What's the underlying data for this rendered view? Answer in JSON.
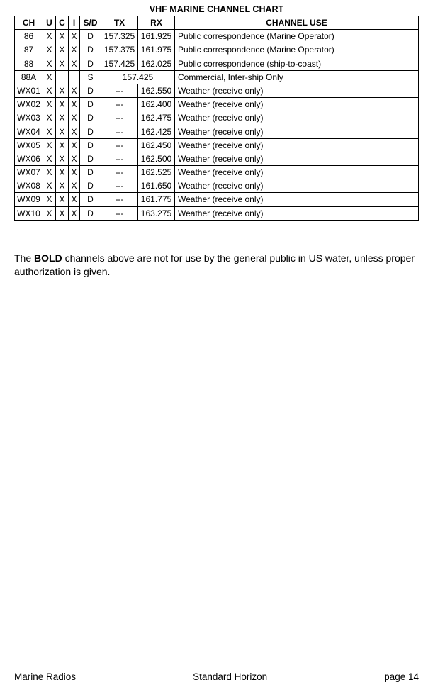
{
  "title": "VHF MARINE CHANNEL CHART",
  "columns": [
    "CH",
    "U",
    "C",
    "I",
    "S/D",
    "TX",
    "RX",
    "CHANNEL USE"
  ],
  "rows": [
    {
      "ch": "86",
      "u": "X",
      "c": "X",
      "i": "X",
      "sd": "D",
      "tx": "157.325",
      "rx": "161.925",
      "use": "Public correspondence (Marine Operator)",
      "merge": false
    },
    {
      "ch": "87",
      "u": "X",
      "c": "X",
      "i": "X",
      "sd": "D",
      "tx": "157.375",
      "rx": "161.975",
      "use": "Public correspondence (Marine Operator)",
      "merge": false
    },
    {
      "ch": "88",
      "u": "X",
      "c": "X",
      "i": "X",
      "sd": "D",
      "tx": "157.425",
      "rx": "162.025",
      "use": "Public correspondence (ship-to-coast)",
      "merge": false
    },
    {
      "ch": "88A",
      "u": "X",
      "c": "",
      "i": "",
      "sd": "S",
      "txrx": "157.425",
      "use": "Commercial, Inter-ship Only",
      "merge": true
    },
    {
      "ch": "WX01",
      "u": "X",
      "c": "X",
      "i": "X",
      "sd": "D",
      "tx": "---",
      "rx": "162.550",
      "use": "Weather (receive only)",
      "merge": false
    },
    {
      "ch": "WX02",
      "u": "X",
      "c": "X",
      "i": "X",
      "sd": "D",
      "tx": "---",
      "rx": "162.400",
      "use": "Weather (receive only)",
      "merge": false
    },
    {
      "ch": "WX03",
      "u": "X",
      "c": "X",
      "i": "X",
      "sd": "D",
      "tx": "---",
      "rx": "162.475",
      "use": "Weather (receive only)",
      "merge": false
    },
    {
      "ch": "WX04",
      "u": "X",
      "c": "X",
      "i": "X",
      "sd": "D",
      "tx": "---",
      "rx": "162.425",
      "use": "Weather (receive only)",
      "merge": false
    },
    {
      "ch": "WX05",
      "u": "X",
      "c": "X",
      "i": "X",
      "sd": "D",
      "tx": "---",
      "rx": "162.450",
      "use": "Weather (receive only)",
      "merge": false
    },
    {
      "ch": "WX06",
      "u": "X",
      "c": "X",
      "i": "X",
      "sd": "D",
      "tx": "---",
      "rx": "162.500",
      "use": "Weather (receive only)",
      "merge": false
    },
    {
      "ch": "WX07",
      "u": "X",
      "c": "X",
      "i": "X",
      "sd": "D",
      "tx": "---",
      "rx": "162.525",
      "use": "Weather (receive only)",
      "merge": false
    },
    {
      "ch": "WX08",
      "u": "X",
      "c": "X",
      "i": "X",
      "sd": "D",
      "tx": "---",
      "rx": "161.650",
      "use": "Weather (receive only)",
      "merge": false
    },
    {
      "ch": "WX09",
      "u": "X",
      "c": "X",
      "i": "X",
      "sd": "D",
      "tx": "---",
      "rx": "161.775",
      "use": "Weather (receive only)",
      "merge": false
    },
    {
      "ch": "WX10",
      "u": "X",
      "c": "X",
      "i": "X",
      "sd": "D",
      "tx": "---",
      "rx": "163.275",
      "use": "Weather (receive only)",
      "merge": false
    }
  ],
  "note_before_bold": "The ",
  "note_bold": "BOLD",
  "note_after_bold": " channels above are not for use by the general public in US water, unless proper authorization is given.",
  "footer": {
    "left": "Marine Radios",
    "center": "Standard Horizon",
    "right": "page 14"
  }
}
